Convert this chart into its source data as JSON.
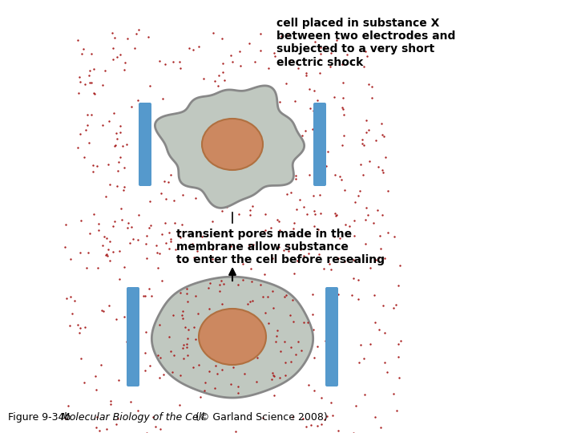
{
  "bg_color": "#ffffff",
  "fig_caption_normal": "Figure 9-34b",
  "fig_caption_italic": "  Molecular Biology of the Cell",
  "fig_caption_rest": " (© Garland Science 2008)",
  "top_label": "cell placed in substance X\nbetween two electrodes and\nsubjected to a very short\nelectric shock",
  "middle_label": "transient pores made in the\nmembrane allow substance\nto enter the cell before resealing",
  "cell_fill": "#c0c8c0",
  "cell_edge": "#888888",
  "nucleus_fill": "#cc8860",
  "nucleus_edge": "#b07040",
  "electrode_color": "#5599cc",
  "dot_outside_color": "#aa2222",
  "dot_inside_color": "#aa2222",
  "dot_size_outside": 3.0,
  "dot_size_inside": 3.0,
  "label_fontsize": 10,
  "caption_fontsize": 9
}
